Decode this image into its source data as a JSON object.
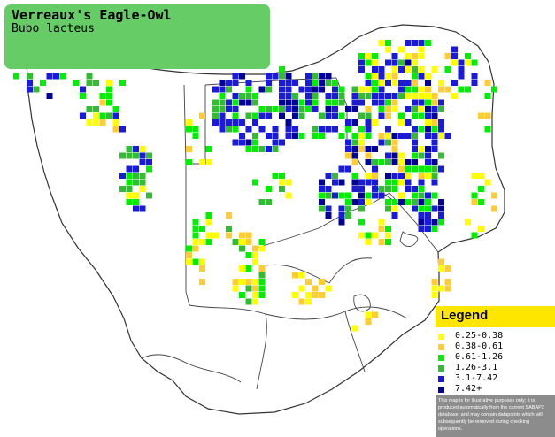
{
  "title": {
    "common_name": "Verreaux's Eagle-Owl",
    "scientific_name": "Bubo lacteus"
  },
  "legend": {
    "heading": "Legend",
    "classes": [
      {
        "label": "0.25-0.38",
        "color": "#ffff00"
      },
      {
        "label": "0.38-0.61",
        "color": "#ffcc33"
      },
      {
        "label": "0.61-1.26",
        "color": "#00ee00"
      },
      {
        "label": "1.26-3.1",
        "color": "#33bb33"
      },
      {
        "label": "3.1-7.42",
        "color": "#1a1adb"
      },
      {
        "label": "7.42+",
        "color": "#000099"
      }
    ],
    "disclaimer": "This map is for illustrative purposes only; it is produced automatically from the current SABAP2 database, and may contain datapoints which will subsequently be removed during checking operations."
  },
  "map": {
    "region": "Southern Africa",
    "background_color": "#ffffff",
    "border_color": "#333333"
  }
}
